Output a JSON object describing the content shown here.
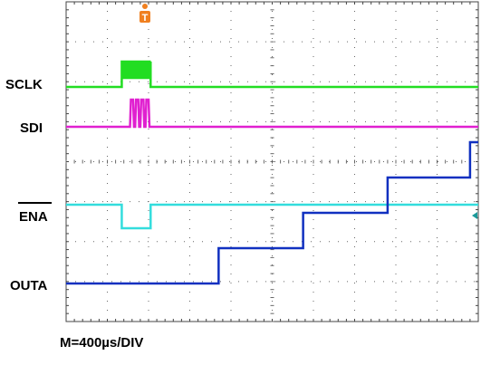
{
  "chart_data": {
    "type": "line",
    "title": "",
    "timebase": "M=400µs/DIV",
    "grid": true,
    "trigger_marker": "T",
    "colors": {
      "SCLK": "#22dd22",
      "SDI": "#e020d0",
      "ENA": "#33dddd",
      "OUTA": "#1030c0",
      "trigger": "#f08020"
    },
    "channels": [
      {
        "name": "SCLK",
        "overline": false
      },
      {
        "name": "SDI",
        "overline": false
      },
      {
        "name": "ENA",
        "overline": true
      },
      {
        "name": "OUTA",
        "overline": false
      }
    ],
    "x_divisions": 10,
    "y_divisions": 8,
    "OUTA_steps_div": [
      {
        "t": 0.0,
        "level": 0.0
      },
      {
        "t": 3.7,
        "level": 0.45
      },
      {
        "t": 5.75,
        "level": 0.9
      },
      {
        "t": 7.8,
        "level": 1.35
      },
      {
        "t": 9.8,
        "level": 1.8
      }
    ],
    "ENA_low_div": [
      1.35,
      2.05
    ],
    "SCLK_burst_div": [
      1.35,
      2.05
    ],
    "SDI_pulses_div": [
      1.55,
      2.05
    ]
  }
}
